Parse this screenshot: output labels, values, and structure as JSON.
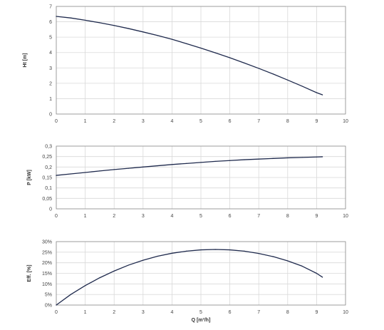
{
  "chart_data": [
    {
      "type": "line",
      "ylabel": "Ht [m]",
      "xlabel": "",
      "xlim": [
        0,
        10
      ],
      "ylim": [
        0,
        7
      ],
      "x_ticks": [
        "0",
        "1",
        "2",
        "3",
        "4",
        "5",
        "6",
        "7",
        "8",
        "9",
        "10"
      ],
      "y_ticks": [
        "0",
        "1",
        "2",
        "3",
        "4",
        "5",
        "6",
        "7"
      ],
      "grid": true,
      "color": "#1f2a4d",
      "series": [
        {
          "x": [
            0,
            0.5,
            1,
            1.5,
            2,
            2.5,
            3,
            3.5,
            4,
            4.5,
            5,
            5.5,
            6,
            6.5,
            7,
            7.5,
            8,
            8.5,
            9,
            9.2
          ],
          "y": [
            6.35,
            6.25,
            6.1,
            5.94,
            5.76,
            5.56,
            5.34,
            5.11,
            4.86,
            4.58,
            4.29,
            3.98,
            3.66,
            3.32,
            2.97,
            2.6,
            2.21,
            1.81,
            1.39,
            1.25
          ]
        }
      ]
    },
    {
      "type": "line",
      "ylabel": "P [kW]",
      "xlabel": "",
      "xlim": [
        0,
        10
      ],
      "ylim": [
        0,
        0.3
      ],
      "x_ticks": [
        "0",
        "1",
        "2",
        "3",
        "4",
        "5",
        "6",
        "7",
        "8",
        "9",
        "10"
      ],
      "y_ticks": [
        "0",
        "0,05",
        "0,1",
        "0,15",
        "0,2",
        "0,25",
        "0,3"
      ],
      "grid": true,
      "color": "#1f2a4d",
      "series": [
        {
          "x": [
            0,
            0.5,
            1,
            1.5,
            2,
            2.5,
            3,
            3.5,
            4,
            4.5,
            5,
            5.5,
            6,
            6.5,
            7,
            7.5,
            8,
            8.5,
            9,
            9.2
          ],
          "y": [
            0.16,
            0.167,
            0.174,
            0.181,
            0.188,
            0.194,
            0.2,
            0.206,
            0.212,
            0.217,
            0.222,
            0.227,
            0.231,
            0.235,
            0.238,
            0.241,
            0.244,
            0.246,
            0.248,
            0.249
          ]
        }
      ]
    },
    {
      "type": "line",
      "ylabel": "Eff. [%]",
      "xlabel": "Q [m³/h]",
      "xlim": [
        0,
        10
      ],
      "ylim": [
        0,
        30
      ],
      "x_ticks": [
        "0",
        "1",
        "2",
        "3",
        "4",
        "5",
        "6",
        "7",
        "8",
        "9",
        "10"
      ],
      "y_ticks": [
        "0%",
        "5%",
        "10%",
        "15%",
        "20%",
        "25%",
        "30%"
      ],
      "grid": true,
      "color": "#1f2a4d",
      "series": [
        {
          "x": [
            0,
            0.5,
            1,
            1.5,
            2,
            2.5,
            3,
            3.5,
            4,
            4.5,
            5,
            5.5,
            6,
            6.5,
            7,
            7.5,
            8,
            8.5,
            9,
            9.2
          ],
          "y": [
            0,
            5,
            9.2,
            12.9,
            16.1,
            18.9,
            21.2,
            23.1,
            24.5,
            25.5,
            26.1,
            26.3,
            26.1,
            25.5,
            24.4,
            22.9,
            20.9,
            18.4,
            15.0,
            13.2
          ]
        }
      ]
    }
  ]
}
